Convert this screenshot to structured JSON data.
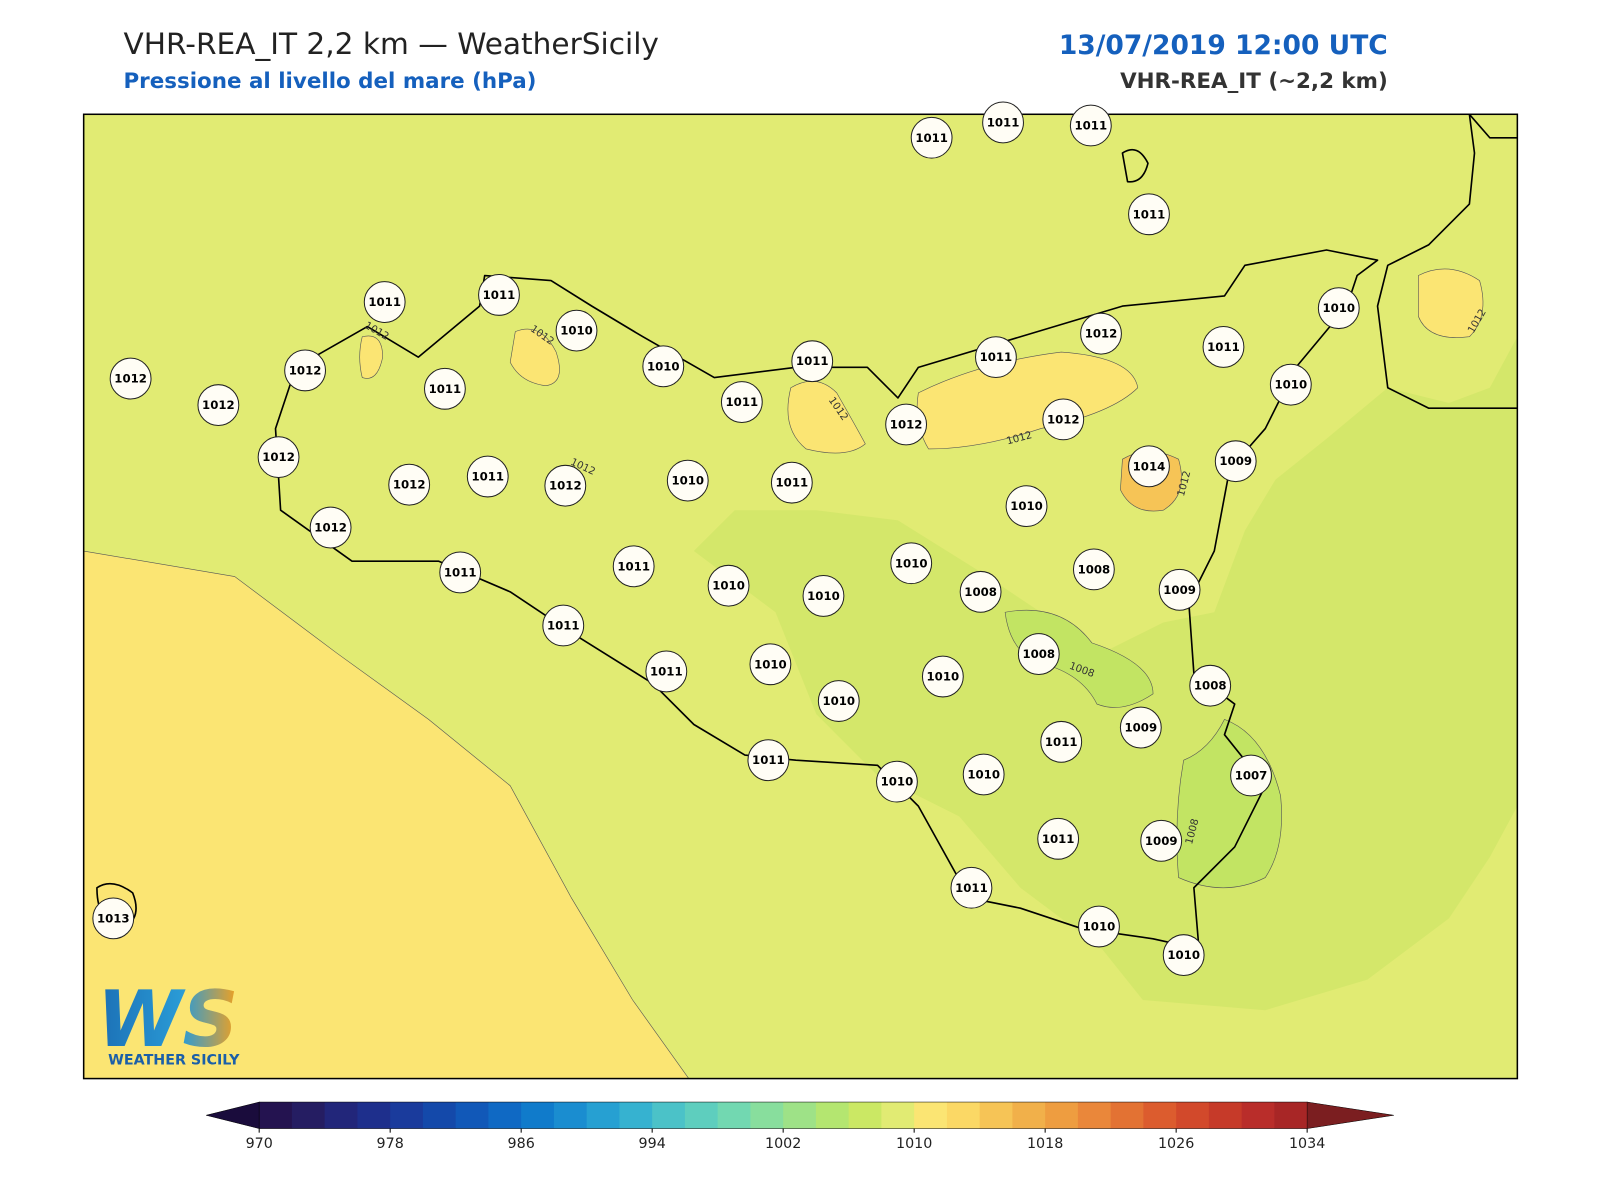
{
  "header": {
    "title": "VHR-REA_IT 2,2 km — WeatherSicily",
    "subtitle": "Pressione al livello del mare (hPa)",
    "date": "13/07/2019 12:00 UTC",
    "model": "VHR-REA_IT (~2,2 km)"
  },
  "stations": [
    1011,
    1011,
    1011,
    1011,
    1011,
    1011,
    1010,
    1010,
    1011,
    1011,
    1012,
    1011,
    1010,
    1010,
    1012,
    1012,
    1012,
    1011,
    1011,
    1012,
    1012,
    1012,
    1012,
    1011,
    1012,
    1010,
    1011,
    1014,
    1009,
    1010,
    1012,
    1011,
    1011,
    1010,
    1010,
    1010,
    1008,
    1008,
    1009,
    1011,
    1011,
    1010,
    1010,
    1010,
    1008,
    1008,
    1009,
    1011,
    1007,
    1011,
    1010,
    1010,
    1011,
    1009,
    1011,
    1013,
    1010,
    1010
  ],
  "contour_labels": [
    "1012",
    "1012",
    "1012",
    "1012",
    "1012",
    "1012",
    "1012",
    "1008",
    "1008"
  ],
  "colorbar": {
    "levels": [
      970,
      972,
      974,
      976,
      978,
      980,
      982,
      984,
      986,
      988,
      990,
      992,
      994,
      996,
      998,
      1000,
      1002,
      1004,
      1006,
      1008,
      1010,
      1012,
      1014,
      1016,
      1018,
      1020,
      1022,
      1024,
      1026,
      1028,
      1030,
      1032,
      1034
    ],
    "colors": [
      "#241350",
      "#251d62",
      "#22267a",
      "#1e2f8c",
      "#1a3b9c",
      "#1449aa",
      "#1158b8",
      "#0f69c4",
      "#107bcb",
      "#1a8dd0",
      "#26a0d2",
      "#36b2d0",
      "#4bc2c8",
      "#5ecebe",
      "#72d8b1",
      "#88de9d",
      "#9ee287",
      "#b4e670",
      "#cbe864",
      "#e1eb73",
      "#fbe573",
      "#fbd865",
      "#f6c456",
      "#f1b04a",
      "#ee9d40",
      "#ea873a",
      "#e37233",
      "#dc5c2e",
      "#d2492b",
      "#c63a29",
      "#b92d2a",
      "#a82626"
    ],
    "under_color": "#1a0c3c",
    "over_color": "#7b1e20",
    "ticks": [
      970,
      978,
      986,
      994,
      1002,
      1010,
      1018,
      1026,
      1034
    ]
  },
  "logo": {
    "mark": "WS",
    "name": "WEATHER SICILY"
  }
}
